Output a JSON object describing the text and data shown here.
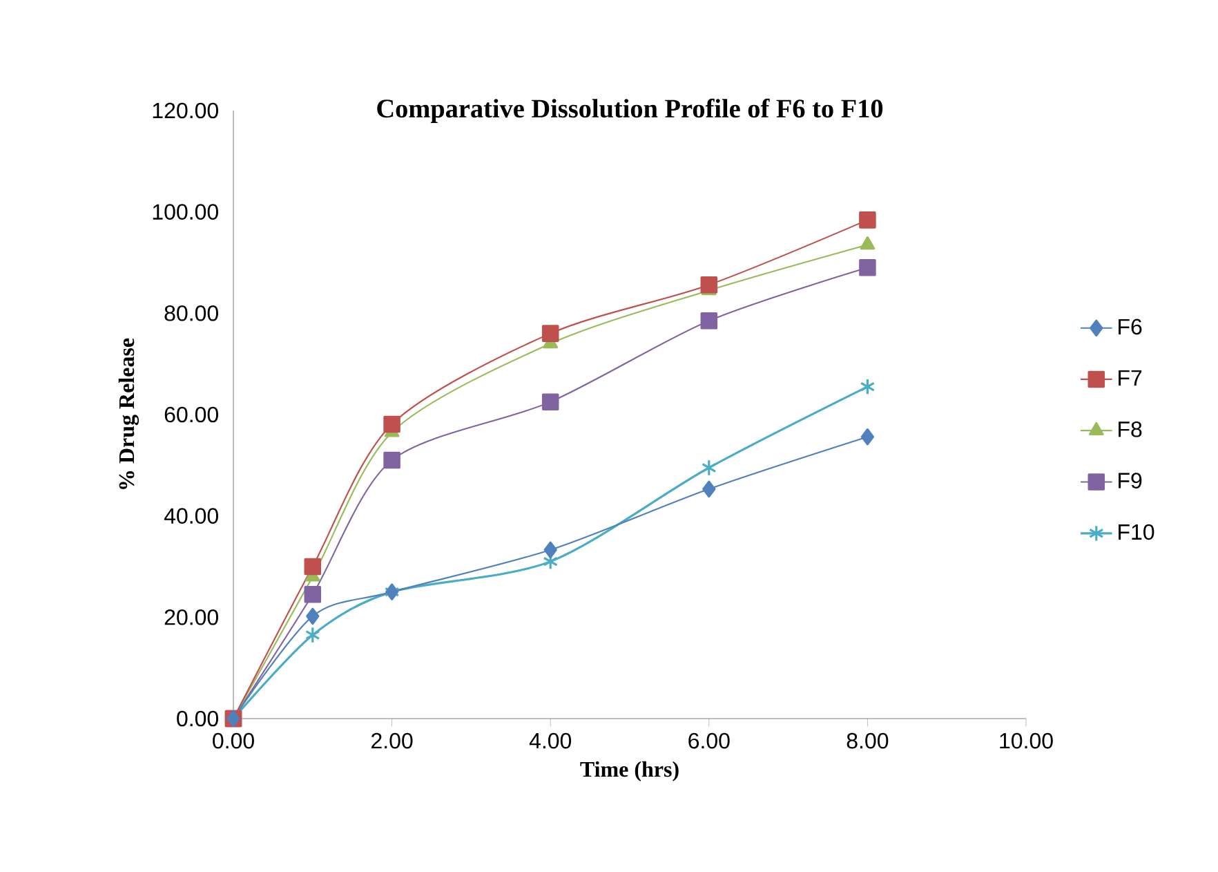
{
  "chart_data": {
    "type": "line",
    "title": "Comparative Dissolution Profile of F6 to F10",
    "xlabel": "Time (hrs)",
    "ylabel": "% Drug Release",
    "x": [
      0,
      1,
      2,
      4,
      6,
      8
    ],
    "xlim": [
      0,
      10
    ],
    "xticks": [
      {
        "value": 0,
        "label": "0.00"
      },
      {
        "value": 2,
        "label": "2.00"
      },
      {
        "value": 4,
        "label": "4.00"
      },
      {
        "value": 6,
        "label": "6.00"
      },
      {
        "value": 8,
        "label": "8.00"
      },
      {
        "value": 10,
        "label": "10.00"
      }
    ],
    "ylim": [
      0,
      120
    ],
    "yticks": [
      {
        "value": 0,
        "label": "0.00"
      },
      {
        "value": 20,
        "label": "20.00"
      },
      {
        "value": 40,
        "label": "40.00"
      },
      {
        "value": 60,
        "label": "60.00"
      },
      {
        "value": 80,
        "label": "80.00"
      },
      {
        "value": 100,
        "label": "100.00"
      },
      {
        "value": 120,
        "label": "120.00"
      }
    ],
    "legend": "right",
    "grid": false,
    "series": [
      {
        "name": "F6",
        "color": "#4f81bd",
        "marker": "diamond",
        "values": [
          0,
          20.2,
          25,
          33.3,
          45.3,
          55.6
        ]
      },
      {
        "name": "F7",
        "color": "#c0504d",
        "marker": "square",
        "values": [
          0,
          30,
          58.1,
          76,
          85.6,
          98.4
        ]
      },
      {
        "name": "F8",
        "color": "#9bbb59",
        "marker": "triangle",
        "values": [
          0,
          28,
          56.5,
          74,
          84.5,
          93.5
        ]
      },
      {
        "name": "F9",
        "color": "#8064a2",
        "marker": "square",
        "values": [
          0,
          24.5,
          51,
          62.5,
          78.5,
          89
        ]
      },
      {
        "name": "F10",
        "color": "#4bacc6",
        "marker": "cross",
        "values": [
          0,
          16.5,
          25,
          31,
          49.5,
          65.5
        ]
      }
    ]
  }
}
